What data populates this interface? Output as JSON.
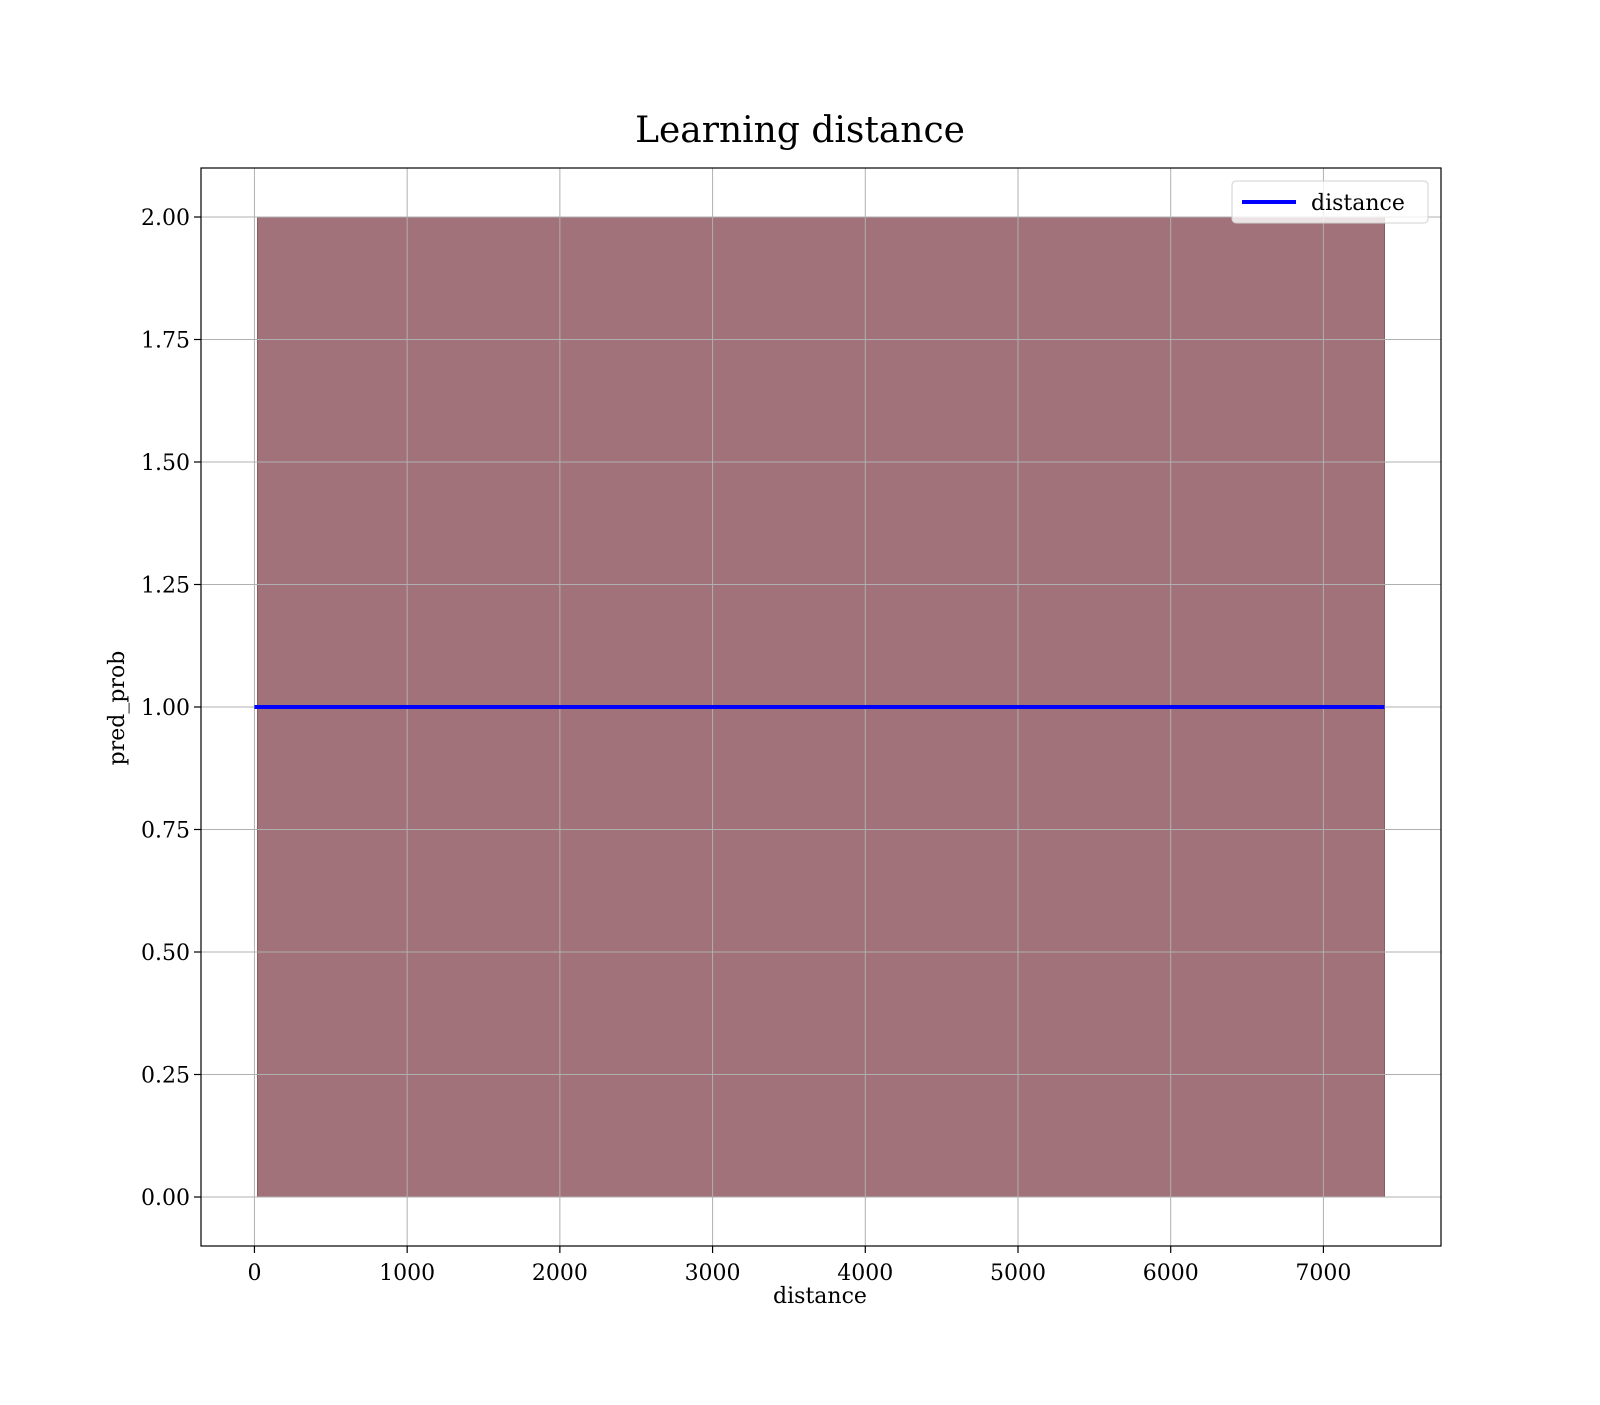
{
  "chart_data": {
    "type": "area",
    "title": "Learning distance",
    "xlabel": "distance",
    "ylabel": "pred_prob",
    "xlim": [
      -350,
      7770
    ],
    "ylim": [
      -0.1,
      2.1
    ],
    "x_ticks": [
      0,
      1000,
      2000,
      3000,
      4000,
      5000,
      6000,
      7000
    ],
    "x_tick_labels": [
      "0",
      "1000",
      "2000",
      "3000",
      "4000",
      "5000",
      "6000",
      "7000"
    ],
    "y_ticks": [
      0,
      0.25,
      0.5,
      0.75,
      1.0,
      1.25,
      1.5,
      1.75,
      2.0
    ],
    "y_tick_labels": [
      "0.00",
      "0.25",
      "0.50",
      "0.75",
      "1.00",
      "1.25",
      "1.50",
      "1.75",
      "2.00"
    ],
    "grid": true,
    "legend_position": "top-right",
    "band": {
      "x": [
        20,
        7400
      ],
      "lower": 0,
      "upper": 2,
      "color": "#a1727a"
    },
    "series": [
      {
        "name": "distance",
        "x": [
          0,
          7400
        ],
        "y": [
          1,
          1
        ],
        "color": "#0000ff"
      }
    ]
  }
}
